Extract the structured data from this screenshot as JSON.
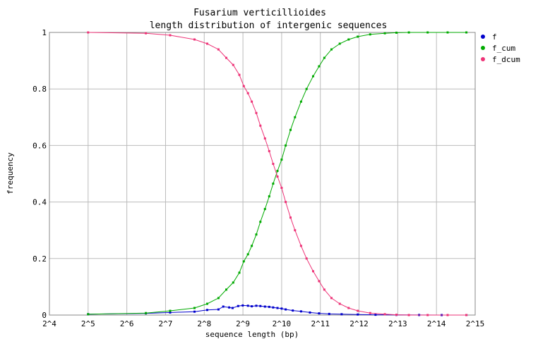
{
  "chart_data": {
    "type": "line",
    "title": "Fusarium verticillioides",
    "subtitle": "length distribution of intergenic sequences",
    "xlabel": "sequence length (bp)",
    "ylabel": "frequency",
    "xscale": "log2",
    "xlim": [
      16,
      32768
    ],
    "ylim": [
      0,
      1
    ],
    "grid": true,
    "legend_position": "right",
    "x_tick_labels": [
      "2^4",
      "2^5",
      "2^6",
      "2^7",
      "2^8",
      "2^9",
      "2^10",
      "2^11",
      "2^12",
      "2^13",
      "2^14",
      "2^15"
    ],
    "y_tick_labels": [
      "0",
      "0.2",
      "0.4",
      "0.6",
      "0.8",
      "1"
    ],
    "y_tick_values": [
      0,
      0.2,
      0.4,
      0.6,
      0.8,
      1
    ],
    "series": [
      {
        "name": "f",
        "color": "#0000cc",
        "x": [
          32,
          90,
          139,
          215,
          270,
          330,
          360,
          400,
          425,
          470,
          510,
          560,
          600,
          650,
          700,
          760,
          820,
          880,
          950,
          1024,
          1100,
          1250,
          1450,
          1700,
          2000,
          2400,
          3000,
          4000,
          5500,
          8000,
          12000,
          18000,
          28000
        ],
        "y": [
          0.003,
          0.006,
          0.009,
          0.012,
          0.018,
          0.02,
          0.03,
          0.027,
          0.025,
          0.032,
          0.034,
          0.033,
          0.031,
          0.033,
          0.032,
          0.03,
          0.029,
          0.027,
          0.025,
          0.023,
          0.02,
          0.016,
          0.013,
          0.009,
          0.006,
          0.004,
          0.003,
          0.002,
          0.001,
          0.0005,
          0.0003,
          0.0001,
          0.0
        ]
      },
      {
        "name": "f_cum",
        "color": "#00aa00",
        "x": [
          32,
          90,
          139,
          215,
          270,
          330,
          380,
          430,
          480,
          520,
          560,
          600,
          650,
          700,
          760,
          820,
          880,
          950,
          1024,
          1100,
          1200,
          1300,
          1450,
          1600,
          1800,
          2000,
          2200,
          2500,
          2900,
          3400,
          4000,
          5000,
          6500,
          8000,
          10000,
          14000,
          20000,
          28000
        ],
        "y": [
          0.003,
          0.007,
          0.015,
          0.025,
          0.04,
          0.06,
          0.09,
          0.115,
          0.15,
          0.19,
          0.215,
          0.245,
          0.285,
          0.33,
          0.375,
          0.42,
          0.465,
          0.51,
          0.55,
          0.6,
          0.655,
          0.7,
          0.755,
          0.8,
          0.845,
          0.88,
          0.91,
          0.94,
          0.96,
          0.975,
          0.985,
          0.993,
          0.997,
          0.999,
          1.0,
          1.0,
          1.0,
          1.0
        ]
      },
      {
        "name": "f_dcum",
        "color": "#ee3377",
        "x": [
          32,
          90,
          139,
          215,
          270,
          330,
          380,
          430,
          480,
          520,
          560,
          600,
          650,
          700,
          760,
          820,
          880,
          950,
          1024,
          1100,
          1200,
          1300,
          1450,
          1600,
          1800,
          2000,
          2200,
          2500,
          2900,
          3400,
          4000,
          5000,
          6500,
          8000,
          10000,
          14000,
          20000,
          28000
        ],
        "y": [
          1.0,
          0.997,
          0.99,
          0.975,
          0.96,
          0.94,
          0.91,
          0.885,
          0.85,
          0.81,
          0.785,
          0.755,
          0.715,
          0.67,
          0.625,
          0.58,
          0.535,
          0.49,
          0.45,
          0.4,
          0.345,
          0.3,
          0.245,
          0.2,
          0.155,
          0.12,
          0.09,
          0.06,
          0.04,
          0.025,
          0.015,
          0.007,
          0.003,
          0.001,
          0.0,
          0.0,
          0.0,
          0.0
        ]
      }
    ]
  }
}
